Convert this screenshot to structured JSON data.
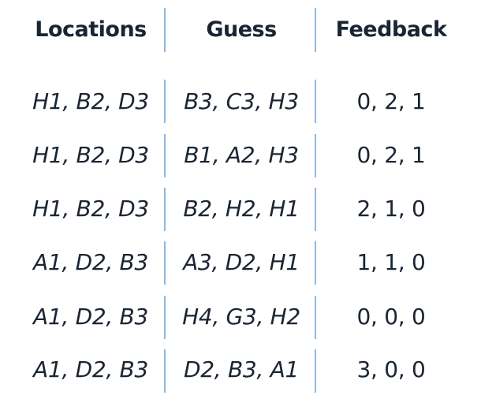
{
  "headers": {
    "locations": "Locations",
    "guess": "Guess",
    "feedback": "Feedback"
  },
  "rows": [
    {
      "locations": "H1, B2, D3",
      "guess": "B3, C3, H3",
      "feedback": "0, 2, 1"
    },
    {
      "locations": "H1, B2, D3",
      "guess": "B1, A2, H3",
      "feedback": "0, 2, 1"
    },
    {
      "locations": "H1, B2, D3",
      "guess": "B2, H2, H1",
      "feedback": "2, 1, 0"
    },
    {
      "locations": "A1, D2, B3",
      "guess": "A3, D2, H1",
      "feedback": "1, 1, 0"
    },
    {
      "locations": "A1, D2, B3",
      "guess": "H4, G3, H2",
      "feedback": "0, 0, 0"
    },
    {
      "locations": "A1, D2, B3",
      "guess": "D2, B3, A1",
      "feedback": "3, 0, 0"
    }
  ],
  "colors": {
    "text": "#1a2533",
    "divider": "#8fb8e0",
    "background": "#ffffff"
  }
}
